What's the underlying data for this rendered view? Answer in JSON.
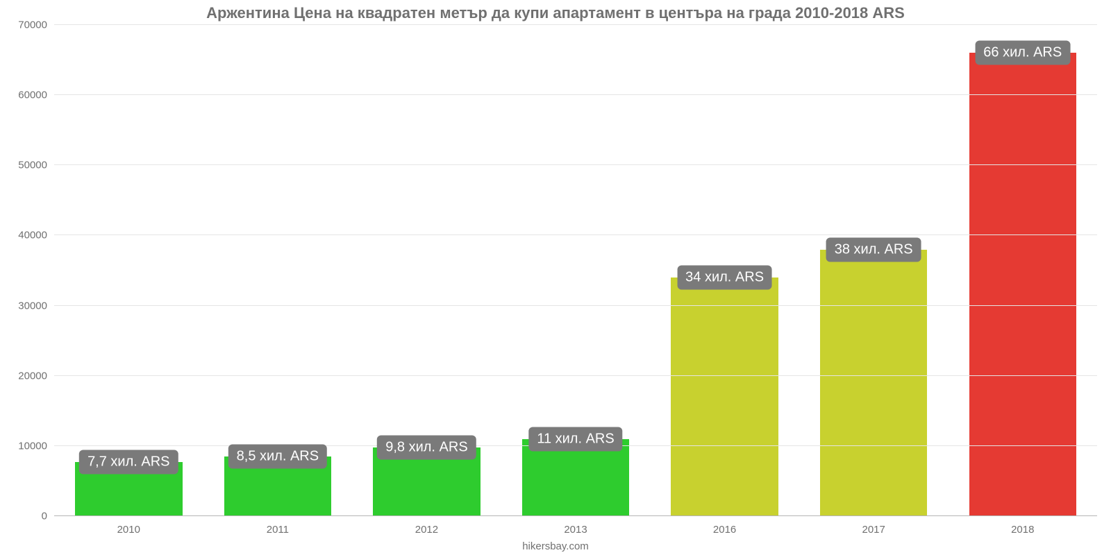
{
  "chart": {
    "type": "bar",
    "title": "Аржентина Цена на квадратен метър да купи апартамент в центъра на града 2010-2018 ARS",
    "title_color": "#707070",
    "title_fontsize": 22,
    "footer": "hikersbay.com",
    "background_color": "#ffffff",
    "grid_color": "#e5e5e5",
    "baseline_color": "#b5b5b5",
    "axis_label_color": "#707070",
    "axis_fontsize": 15,
    "ylim": [
      0,
      70000
    ],
    "ytick_step": 10000,
    "yticks": [
      "0",
      "10000",
      "20000",
      "30000",
      "40000",
      "50000",
      "60000",
      "70000"
    ],
    "categories": [
      "2010",
      "2011",
      "2012",
      "2013",
      "2016",
      "2017",
      "2018"
    ],
    "values": [
      7700,
      8500,
      9800,
      11000,
      34000,
      38000,
      66000
    ],
    "value_labels": [
      "7,7 хил. ARS",
      "8,5 хил. ARS",
      "9,8 хил. ARS",
      "11 хил. ARS",
      "34 хил. ARS",
      "38 хил. ARS",
      "66 хил. ARS"
    ],
    "bar_colors": [
      "#2ecc2e",
      "#2ecc2e",
      "#2ecc2e",
      "#2ecc2e",
      "#c8d12f",
      "#c8d12f",
      "#e53a33"
    ],
    "bar_width_pct": 72,
    "label_bg": "#7a7a7a",
    "label_color": "#ffffff",
    "label_fontsize": 20,
    "label_border_radius": 6
  }
}
